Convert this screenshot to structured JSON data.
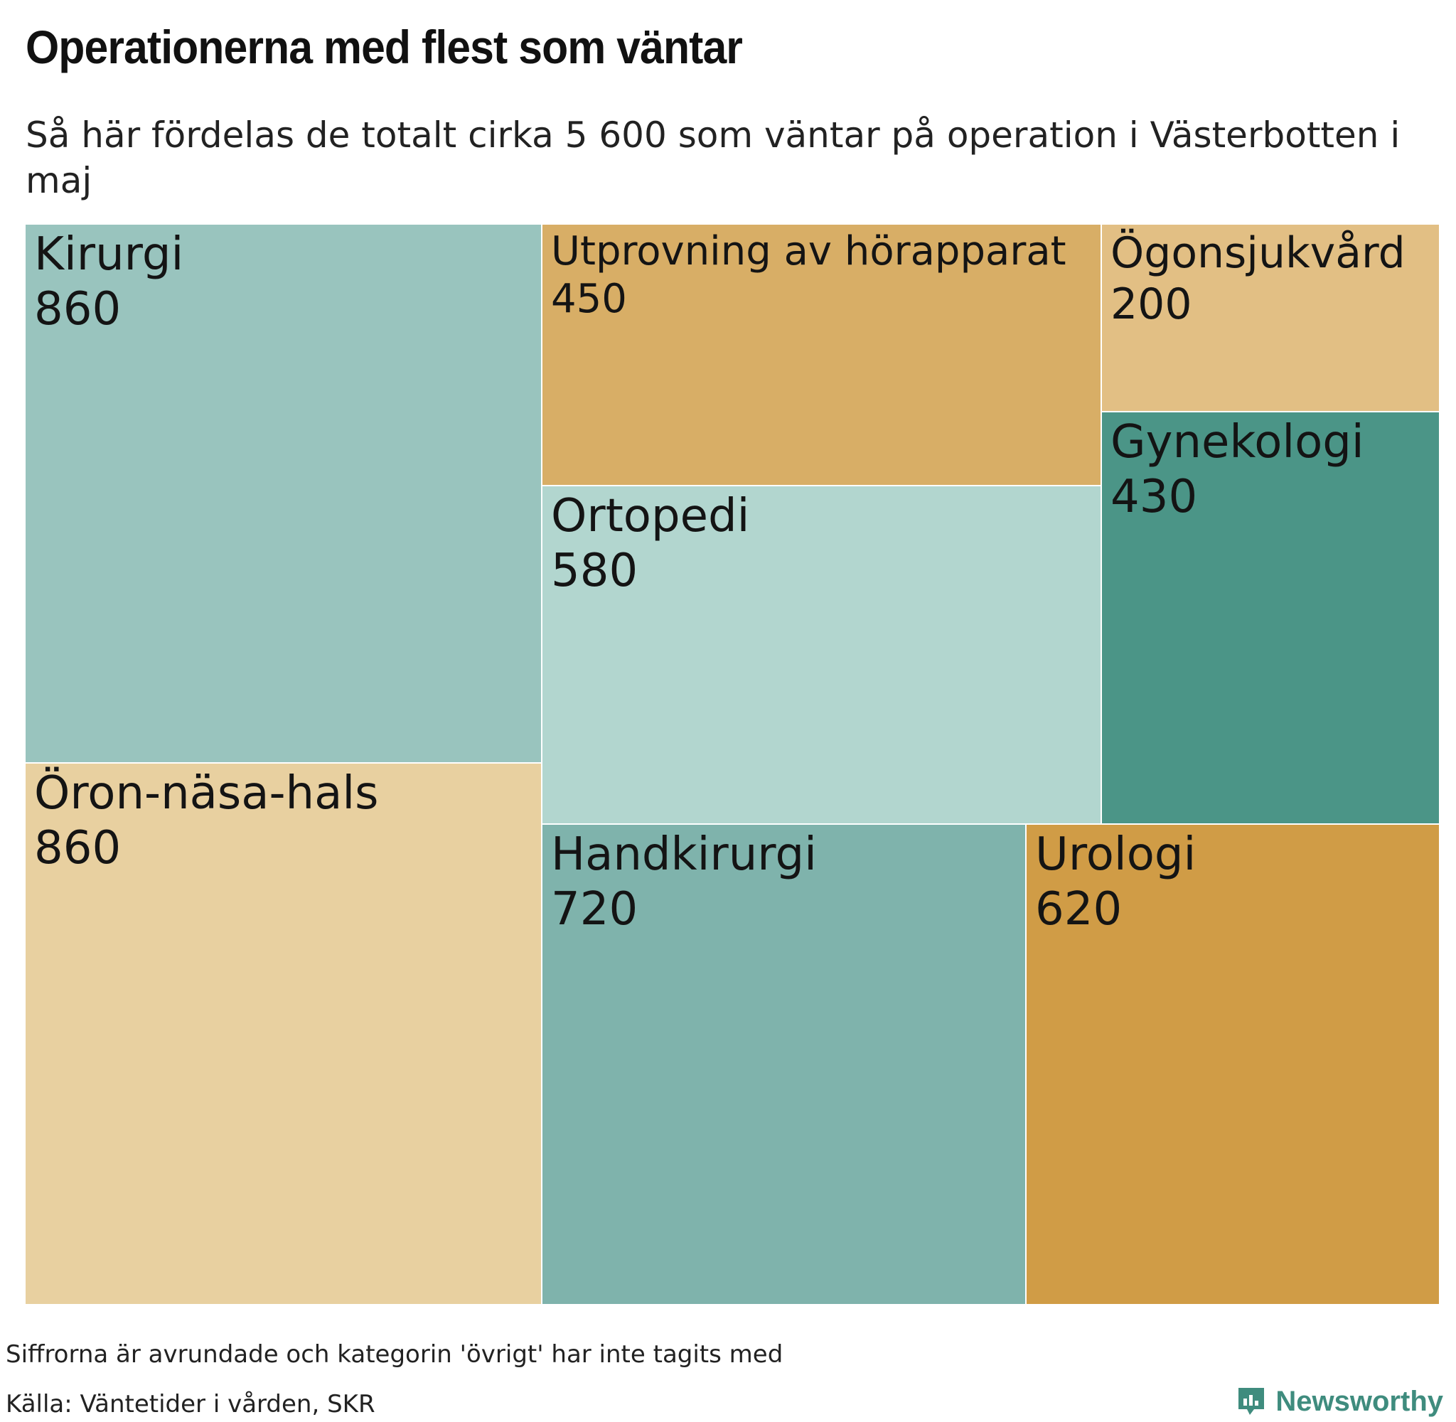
{
  "title": "Operationerna med flest som väntar",
  "subtitle": "Så här fördelas de totalt cirka 5 600 som väntar på operation i Västerbotten i maj",
  "note": "Siffrorna är avrundade och kategorin 'övrigt' har inte tagits med",
  "source": "Källa: Väntetider i vården, SKR",
  "brand": {
    "name": "Newsworthy",
    "icon": "newsworthy-logo-icon",
    "color": "#3f8c7e"
  },
  "chart_data": {
    "type": "treemap",
    "unit": "antal som väntar",
    "items": [
      {
        "label": "Kirurgi",
        "value": 860,
        "display": "860",
        "color": "#99c4be"
      },
      {
        "label": "Öron-näsa-hals",
        "value": 860,
        "display": "860",
        "color": "#e8d0a0"
      },
      {
        "label": "Utprovning av hörapparat",
        "value": 450,
        "display": "450",
        "color": "#d8ae66"
      },
      {
        "label": "Ortopedi",
        "value": 580,
        "display": "580",
        "color": "#b2d6cf"
      },
      {
        "label": "Handkirurgi",
        "value": 720,
        "display": "720",
        "color": "#7fb3ac"
      },
      {
        "label": "Urologi",
        "value": 620,
        "display": "620",
        "color": "#d09c46"
      },
      {
        "label": "Ögonsjukvård",
        "value": 200,
        "display": "200",
        "color": "#e2bf84"
      },
      {
        "label": "Gynekologi",
        "value": 430,
        "display": "430",
        "color": "#4b9587"
      }
    ]
  }
}
